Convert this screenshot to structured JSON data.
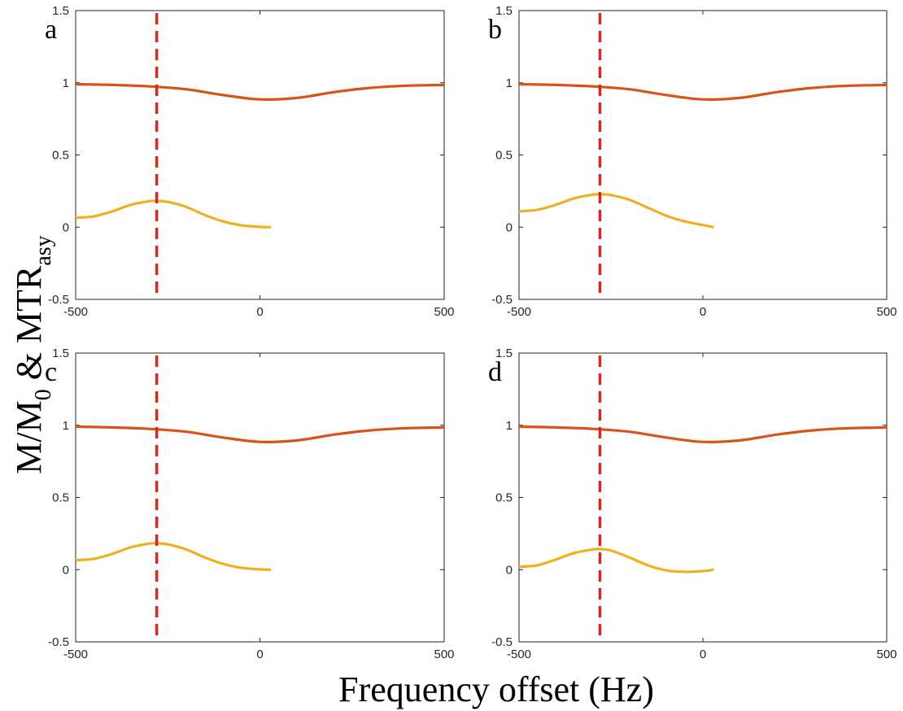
{
  "figure": {
    "xlabel": "Frequency offset (Hz)",
    "ylabel": {
      "part1": "M/M",
      "sub1": "0",
      "part2": " & MTR",
      "sub2": "asy"
    }
  },
  "colors": {
    "z_spectrum": "#D95319",
    "mtr_asy": "#EDB120",
    "marker": "#D42A1E",
    "axes": "#262626"
  },
  "chart_data": [
    {
      "type": "line",
      "panel_label": "a",
      "xlim": [
        -500,
        500
      ],
      "ylim": [
        -0.5,
        1.5
      ],
      "xticks": [
        "-500",
        "0",
        "500"
      ],
      "yticks": [
        "-0.5",
        "0",
        "0.5",
        "1",
        "1.5"
      ],
      "marker_x": -280,
      "series": [
        {
          "name": "M/M0",
          "x": [
            -500,
            -400,
            -300,
            -200,
            -100,
            0,
            100,
            200,
            300,
            400,
            500
          ],
          "y": [
            0.99,
            0.985,
            0.975,
            0.955,
            0.915,
            0.885,
            0.895,
            0.935,
            0.965,
            0.98,
            0.985
          ]
        },
        {
          "name": "MTRasy",
          "x": [
            -500,
            -450,
            -400,
            -350,
            -300,
            -280,
            -250,
            -200,
            -150,
            -100,
            -50,
            0,
            30
          ],
          "y": [
            0.065,
            0.075,
            0.11,
            0.155,
            0.18,
            0.182,
            0.175,
            0.14,
            0.085,
            0.04,
            0.012,
            0.002,
            0.0
          ]
        }
      ]
    },
    {
      "type": "line",
      "panel_label": "b",
      "xlim": [
        -500,
        500
      ],
      "ylim": [
        -0.5,
        1.5
      ],
      "xticks": [
        "-500",
        "0",
        "500"
      ],
      "yticks": [
        "-0.5",
        "0",
        "0.5",
        "1",
        "1.5"
      ],
      "marker_x": -280,
      "series": [
        {
          "name": "M/M0",
          "x": [
            -500,
            -400,
            -300,
            -200,
            -100,
            0,
            100,
            200,
            300,
            400,
            500
          ],
          "y": [
            0.99,
            0.985,
            0.975,
            0.955,
            0.915,
            0.885,
            0.895,
            0.935,
            0.965,
            0.98,
            0.985
          ]
        },
        {
          "name": "MTRasy",
          "x": [
            -500,
            -450,
            -400,
            -350,
            -300,
            -280,
            -250,
            -200,
            -150,
            -100,
            -50,
            0,
            30
          ],
          "y": [
            0.11,
            0.12,
            0.155,
            0.2,
            0.225,
            0.228,
            0.222,
            0.19,
            0.135,
            0.08,
            0.04,
            0.015,
            0.0
          ]
        }
      ]
    },
    {
      "type": "line",
      "panel_label": "c",
      "xlim": [
        -500,
        500
      ],
      "ylim": [
        -0.5,
        1.5
      ],
      "xticks": [
        "-500",
        "0",
        "500"
      ],
      "yticks": [
        "-0.5",
        "0",
        "0.5",
        "1",
        "1.5"
      ],
      "marker_x": -280,
      "series": [
        {
          "name": "M/M0",
          "x": [
            -500,
            -400,
            -300,
            -200,
            -100,
            0,
            100,
            200,
            300,
            400,
            500
          ],
          "y": [
            0.99,
            0.985,
            0.975,
            0.955,
            0.915,
            0.885,
            0.895,
            0.935,
            0.965,
            0.98,
            0.985
          ]
        },
        {
          "name": "MTRasy",
          "x": [
            -500,
            -450,
            -400,
            -350,
            -300,
            -280,
            -250,
            -200,
            -150,
            -100,
            -50,
            0,
            30
          ],
          "y": [
            0.065,
            0.075,
            0.11,
            0.155,
            0.18,
            0.182,
            0.175,
            0.14,
            0.085,
            0.04,
            0.012,
            0.002,
            0.0
          ]
        }
      ]
    },
    {
      "type": "line",
      "panel_label": "d",
      "xlim": [
        -500,
        500
      ],
      "ylim": [
        -0.5,
        1.5
      ],
      "xticks": [
        "-500",
        "0",
        "500"
      ],
      "yticks": [
        "-0.5",
        "0",
        "0.5",
        "1",
        "1.5"
      ],
      "marker_x": -280,
      "series": [
        {
          "name": "M/M0",
          "x": [
            -500,
            -400,
            -300,
            -200,
            -100,
            0,
            100,
            200,
            300,
            400,
            500
          ],
          "y": [
            0.99,
            0.985,
            0.975,
            0.955,
            0.915,
            0.885,
            0.895,
            0.935,
            0.965,
            0.98,
            0.985
          ]
        },
        {
          "name": "MTRasy",
          "x": [
            -500,
            -450,
            -400,
            -350,
            -300,
            -280,
            -250,
            -200,
            -150,
            -100,
            -50,
            0,
            30
          ],
          "y": [
            0.02,
            0.03,
            0.07,
            0.115,
            0.14,
            0.142,
            0.132,
            0.085,
            0.03,
            -0.005,
            -0.015,
            -0.01,
            0.0
          ]
        }
      ]
    }
  ]
}
